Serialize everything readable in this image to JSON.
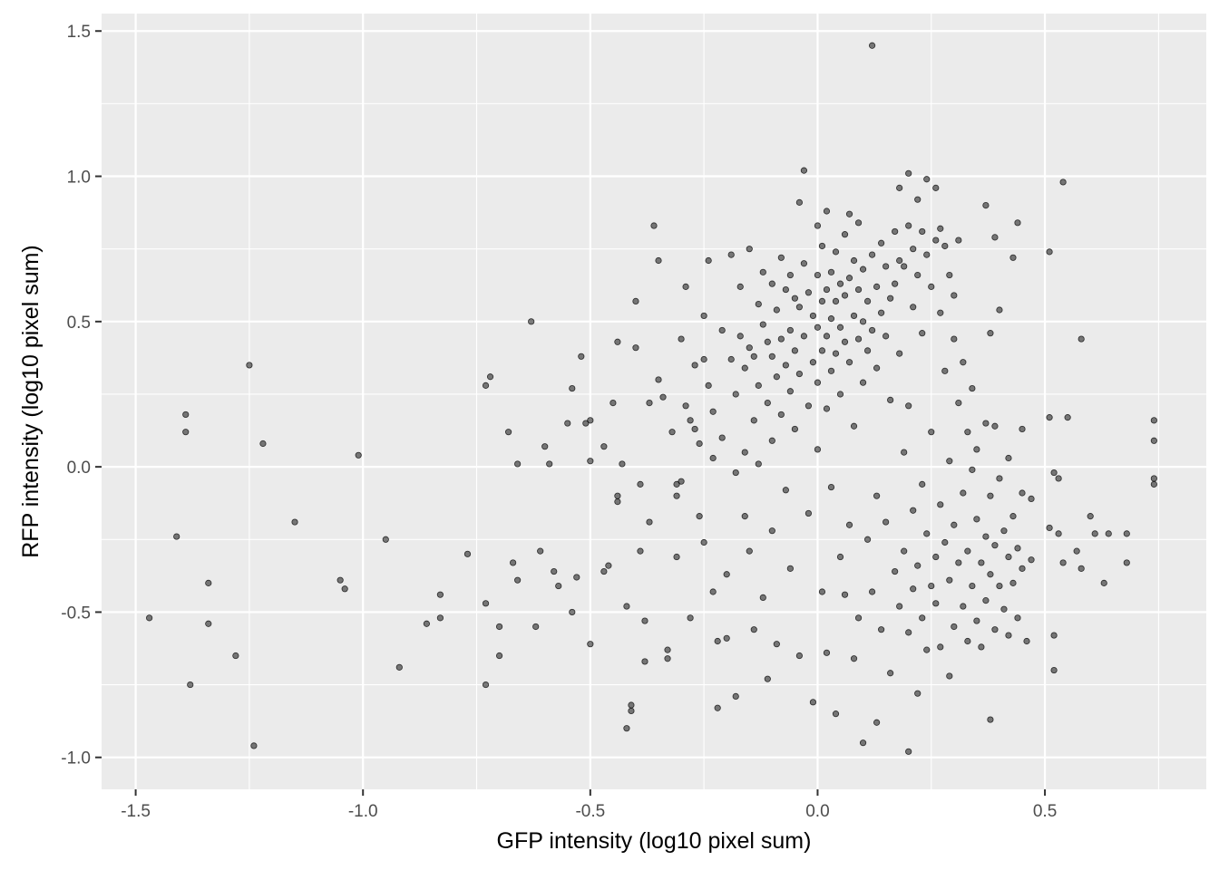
{
  "chart_data": {
    "type": "scatter",
    "title": "",
    "xlabel": "GFP intensity (log10 pixel sum)",
    "ylabel": "RFP intensity (log10 pixel sum)",
    "xlim": [
      -1.575,
      0.855
    ],
    "ylim": [
      -1.11,
      1.56
    ],
    "x_ticks": [
      -1.5,
      -1.0,
      -0.5,
      0.0,
      0.5
    ],
    "x_tick_labels": [
      "-1.5",
      "-1.0",
      "-0.5",
      "0.0",
      "0.5"
    ],
    "y_ticks": [
      -1.0,
      -0.5,
      0.0,
      0.5,
      1.0,
      1.5
    ],
    "y_tick_labels": [
      "-1.0",
      "-0.5",
      "0.0",
      "0.5",
      "1.0",
      "1.5"
    ],
    "grid": true,
    "panel_color": "#ebebeb",
    "point_color": "#000000",
    "point_opacity": 0.5,
    "points": [
      [
        -1.47,
        -0.52
      ],
      [
        -1.41,
        -0.24
      ],
      [
        -1.39,
        0.18
      ],
      [
        -1.39,
        0.12
      ],
      [
        -1.38,
        -0.75
      ],
      [
        -1.34,
        -0.4
      ],
      [
        -1.34,
        -0.54
      ],
      [
        -1.28,
        -0.65
      ],
      [
        -1.25,
        0.35
      ],
      [
        -1.24,
        -0.96
      ],
      [
        -1.22,
        0.08
      ],
      [
        -1.15,
        -0.19
      ],
      [
        -1.05,
        -0.39
      ],
      [
        -1.04,
        -0.42
      ],
      [
        -1.01,
        0.04
      ],
      [
        -0.95,
        -0.25
      ],
      [
        -0.92,
        -0.69
      ],
      [
        -0.86,
        -0.54
      ],
      [
        -0.83,
        -0.44
      ],
      [
        -0.83,
        -0.52
      ],
      [
        -0.77,
        -0.3
      ],
      [
        -0.73,
        0.28
      ],
      [
        -0.72,
        0.31
      ],
      [
        -0.73,
        -0.47
      ],
      [
        -0.73,
        -0.75
      ],
      [
        -0.7,
        -0.55
      ],
      [
        -0.7,
        -0.65
      ],
      [
        -0.68,
        0.12
      ],
      [
        -0.67,
        -0.33
      ],
      [
        -0.66,
        -0.39
      ],
      [
        -0.66,
        0.01
      ],
      [
        -0.63,
        0.5
      ],
      [
        -0.62,
        -0.55
      ],
      [
        -0.61,
        -0.29
      ],
      [
        -0.6,
        0.07
      ],
      [
        -0.59,
        0.01
      ],
      [
        -0.58,
        -0.36
      ],
      [
        -0.57,
        -0.41
      ],
      [
        -0.55,
        0.15
      ],
      [
        -0.54,
        0.27
      ],
      [
        -0.54,
        -0.5
      ],
      [
        -0.53,
        -0.38
      ],
      [
        -0.52,
        0.38
      ],
      [
        -0.51,
        0.15
      ],
      [
        -0.5,
        0.16
      ],
      [
        -0.5,
        0.02
      ],
      [
        -0.5,
        -0.61
      ],
      [
        -0.47,
        0.07
      ],
      [
        -0.47,
        -0.36
      ],
      [
        -0.46,
        -0.34
      ],
      [
        -0.45,
        0.22
      ],
      [
        -0.44,
        0.43
      ],
      [
        -0.44,
        -0.1
      ],
      [
        -0.44,
        -0.12
      ],
      [
        -0.43,
        0.01
      ],
      [
        -0.42,
        -0.48
      ],
      [
        -0.42,
        -0.9
      ],
      [
        -0.41,
        -0.82
      ],
      [
        -0.41,
        -0.84
      ],
      [
        -0.4,
        0.57
      ],
      [
        -0.4,
        0.41
      ],
      [
        -0.39,
        -0.06
      ],
      [
        -0.39,
        -0.29
      ],
      [
        -0.38,
        -0.53
      ],
      [
        -0.38,
        -0.67
      ],
      [
        -0.37,
        0.22
      ],
      [
        -0.37,
        -0.19
      ],
      [
        -0.36,
        0.83
      ],
      [
        -0.35,
        0.71
      ],
      [
        -0.35,
        0.3
      ],
      [
        -0.34,
        0.24
      ],
      [
        -0.33,
        -0.63
      ],
      [
        -0.33,
        -0.66
      ],
      [
        -0.32,
        0.12
      ],
      [
        -0.31,
        -0.06
      ],
      [
        -0.31,
        -0.1
      ],
      [
        -0.31,
        -0.31
      ],
      [
        -0.3,
        0.44
      ],
      [
        -0.3,
        -0.05
      ],
      [
        -0.29,
        0.62
      ],
      [
        -0.29,
        0.21
      ],
      [
        -0.28,
        0.16
      ],
      [
        -0.28,
        -0.52
      ],
      [
        -0.27,
        0.35
      ],
      [
        -0.27,
        0.13
      ],
      [
        -0.26,
        0.08
      ],
      [
        -0.26,
        -0.17
      ],
      [
        -0.25,
        0.52
      ],
      [
        -0.25,
        0.37
      ],
      [
        -0.25,
        -0.26
      ],
      [
        -0.24,
        0.71
      ],
      [
        -0.24,
        0.28
      ],
      [
        -0.23,
        0.19
      ],
      [
        -0.23,
        0.03
      ],
      [
        -0.23,
        -0.43
      ],
      [
        -0.22,
        -0.83
      ],
      [
        -0.22,
        -0.6
      ],
      [
        -0.21,
        0.47
      ],
      [
        -0.21,
        0.1
      ],
      [
        -0.2,
        -0.37
      ],
      [
        -0.2,
        -0.59
      ],
      [
        -0.19,
        0.73
      ],
      [
        -0.19,
        0.37
      ],
      [
        -0.18,
        0.25
      ],
      [
        -0.18,
        -0.02
      ],
      [
        -0.18,
        -0.79
      ],
      [
        -0.17,
        0.62
      ],
      [
        -0.17,
        0.45
      ],
      [
        -0.16,
        0.34
      ],
      [
        -0.16,
        0.05
      ],
      [
        -0.16,
        -0.17
      ],
      [
        -0.15,
        0.75
      ],
      [
        -0.15,
        0.41
      ],
      [
        -0.15,
        -0.29
      ],
      [
        -0.14,
        0.38
      ],
      [
        -0.14,
        0.16
      ],
      [
        -0.14,
        -0.56
      ],
      [
        -0.13,
        0.56
      ],
      [
        -0.13,
        0.28
      ],
      [
        -0.13,
        0.01
      ],
      [
        -0.12,
        0.67
      ],
      [
        -0.12,
        0.49
      ],
      [
        -0.12,
        -0.45
      ],
      [
        -0.11,
        0.43
      ],
      [
        -0.11,
        0.22
      ],
      [
        -0.11,
        -0.73
      ],
      [
        -0.1,
        0.63
      ],
      [
        -0.1,
        0.38
      ],
      [
        -0.1,
        0.09
      ],
      [
        -0.1,
        -0.22
      ],
      [
        -0.09,
        0.54
      ],
      [
        -0.09,
        0.31
      ],
      [
        -0.09,
        -0.61
      ],
      [
        -0.08,
        0.72
      ],
      [
        -0.08,
        0.44
      ],
      [
        -0.08,
        0.18
      ],
      [
        -0.07,
        0.61
      ],
      [
        -0.07,
        0.35
      ],
      [
        -0.07,
        -0.08
      ],
      [
        -0.06,
        0.66
      ],
      [
        -0.06,
        0.47
      ],
      [
        -0.06,
        0.26
      ],
      [
        -0.06,
        -0.35
      ],
      [
        -0.05,
        0.58
      ],
      [
        -0.05,
        0.4
      ],
      [
        -0.05,
        0.13
      ],
      [
        -0.04,
        0.91
      ],
      [
        -0.04,
        0.55
      ],
      [
        -0.04,
        0.32
      ],
      [
        -0.04,
        -0.65
      ],
      [
        -0.03,
        1.02
      ],
      [
        -0.03,
        0.7
      ],
      [
        -0.03,
        0.45
      ],
      [
        -0.02,
        0.6
      ],
      [
        -0.02,
        0.21
      ],
      [
        -0.02,
        -0.16
      ],
      [
        -0.01,
        0.52
      ],
      [
        -0.01,
        0.36
      ],
      [
        -0.01,
        -0.81
      ],
      [
        0.0,
        0.83
      ],
      [
        0.0,
        0.66
      ],
      [
        0.0,
        0.48
      ],
      [
        0.0,
        0.29
      ],
      [
        0.0,
        0.06
      ],
      [
        0.01,
        0.76
      ],
      [
        0.01,
        0.57
      ],
      [
        0.01,
        0.4
      ],
      [
        0.01,
        -0.43
      ],
      [
        0.02,
        0.88
      ],
      [
        0.02,
        0.61
      ],
      [
        0.02,
        0.45
      ],
      [
        0.02,
        0.2
      ],
      [
        0.02,
        -0.64
      ],
      [
        0.03,
        0.67
      ],
      [
        0.03,
        0.51
      ],
      [
        0.03,
        0.33
      ],
      [
        0.03,
        -0.07
      ],
      [
        0.04,
        0.74
      ],
      [
        0.04,
        0.57
      ],
      [
        0.04,
        0.39
      ],
      [
        0.04,
        -0.85
      ],
      [
        0.05,
        0.63
      ],
      [
        0.05,
        0.48
      ],
      [
        0.05,
        0.25
      ],
      [
        0.05,
        -0.31
      ],
      [
        0.06,
        0.8
      ],
      [
        0.06,
        0.59
      ],
      [
        0.06,
        0.43
      ],
      [
        0.06,
        -0.44
      ],
      [
        0.07,
        0.87
      ],
      [
        0.07,
        0.65
      ],
      [
        0.07,
        0.36
      ],
      [
        0.07,
        -0.2
      ],
      [
        0.08,
        0.71
      ],
      [
        0.08,
        0.52
      ],
      [
        0.08,
        0.14
      ],
      [
        0.08,
        -0.66
      ],
      [
        0.09,
        0.84
      ],
      [
        0.09,
        0.61
      ],
      [
        0.09,
        0.44
      ],
      [
        0.09,
        -0.52
      ],
      [
        0.1,
        0.68
      ],
      [
        0.1,
        0.5
      ],
      [
        0.1,
        0.29
      ],
      [
        0.1,
        -0.95
      ],
      [
        0.11,
        0.57
      ],
      [
        0.11,
        0.4
      ],
      [
        0.11,
        -0.25
      ],
      [
        0.12,
        1.45
      ],
      [
        0.12,
        0.73
      ],
      [
        0.12,
        0.47
      ],
      [
        0.12,
        -0.43
      ],
      [
        0.13,
        0.62
      ],
      [
        0.13,
        0.34
      ],
      [
        0.13,
        -0.1
      ],
      [
        0.13,
        -0.88
      ],
      [
        0.14,
        0.77
      ],
      [
        0.14,
        0.53
      ],
      [
        0.14,
        -0.56
      ],
      [
        0.15,
        0.69
      ],
      [
        0.15,
        0.45
      ],
      [
        0.15,
        -0.19
      ],
      [
        0.16,
        0.58
      ],
      [
        0.16,
        0.23
      ],
      [
        0.16,
        -0.71
      ],
      [
        0.17,
        0.81
      ],
      [
        0.17,
        0.63
      ],
      [
        0.17,
        -0.36
      ],
      [
        0.18,
        0.96
      ],
      [
        0.18,
        0.71
      ],
      [
        0.18,
        0.39
      ],
      [
        0.18,
        -0.48
      ],
      [
        0.19,
        0.69
      ],
      [
        0.19,
        0.05
      ],
      [
        0.19,
        -0.29
      ],
      [
        0.2,
        1.01
      ],
      [
        0.2,
        0.83
      ],
      [
        0.2,
        0.21
      ],
      [
        0.2,
        -0.57
      ],
      [
        0.2,
        -0.98
      ],
      [
        0.21,
        0.75
      ],
      [
        0.21,
        0.55
      ],
      [
        0.21,
        -0.15
      ],
      [
        0.21,
        -0.42
      ],
      [
        0.22,
        0.92
      ],
      [
        0.22,
        0.66
      ],
      [
        0.22,
        -0.34
      ],
      [
        0.22,
        -0.78
      ],
      [
        0.23,
        0.81
      ],
      [
        0.23,
        0.46
      ],
      [
        0.23,
        -0.06
      ],
      [
        0.23,
        -0.52
      ],
      [
        0.24,
        0.99
      ],
      [
        0.24,
        0.73
      ],
      [
        0.24,
        -0.23
      ],
      [
        0.24,
        -0.63
      ],
      [
        0.25,
        0.62
      ],
      [
        0.25,
        0.12
      ],
      [
        0.25,
        -0.41
      ],
      [
        0.26,
        0.96
      ],
      [
        0.26,
        0.78
      ],
      [
        0.26,
        -0.31
      ],
      [
        0.26,
        -0.47
      ],
      [
        0.27,
        0.82
      ],
      [
        0.27,
        0.53
      ],
      [
        0.27,
        -0.13
      ],
      [
        0.27,
        -0.62
      ],
      [
        0.28,
        0.76
      ],
      [
        0.28,
        0.33
      ],
      [
        0.28,
        -0.26
      ],
      [
        0.29,
        0.66
      ],
      [
        0.29,
        0.02
      ],
      [
        0.29,
        -0.39
      ],
      [
        0.29,
        -0.72
      ],
      [
        0.3,
        0.59
      ],
      [
        0.3,
        0.44
      ],
      [
        0.3,
        -0.2
      ],
      [
        0.3,
        -0.55
      ],
      [
        0.31,
        0.78
      ],
      [
        0.31,
        0.22
      ],
      [
        0.31,
        -0.33
      ],
      [
        0.32,
        0.36
      ],
      [
        0.32,
        -0.09
      ],
      [
        0.32,
        -0.48
      ],
      [
        0.33,
        0.12
      ],
      [
        0.33,
        -0.29
      ],
      [
        0.33,
        -0.6
      ],
      [
        0.34,
        0.27
      ],
      [
        0.34,
        -0.01
      ],
      [
        0.34,
        -0.41
      ],
      [
        0.35,
        0.06
      ],
      [
        0.35,
        -0.18
      ],
      [
        0.35,
        -0.53
      ],
      [
        0.36,
        -0.33
      ],
      [
        0.36,
        -0.62
      ],
      [
        0.37,
        0.9
      ],
      [
        0.37,
        0.15
      ],
      [
        0.37,
        -0.24
      ],
      [
        0.37,
        -0.46
      ],
      [
        0.38,
        0.46
      ],
      [
        0.38,
        -0.1
      ],
      [
        0.38,
        -0.37
      ],
      [
        0.38,
        -0.87
      ],
      [
        0.39,
        0.79
      ],
      [
        0.39,
        0.14
      ],
      [
        0.39,
        -0.27
      ],
      [
        0.39,
        -0.56
      ],
      [
        0.4,
        0.54
      ],
      [
        0.4,
        -0.04
      ],
      [
        0.4,
        -0.41
      ],
      [
        0.41,
        -0.22
      ],
      [
        0.41,
        -0.49
      ],
      [
        0.42,
        0.03
      ],
      [
        0.42,
        -0.31
      ],
      [
        0.42,
        -0.58
      ],
      [
        0.43,
        0.72
      ],
      [
        0.43,
        -0.17
      ],
      [
        0.43,
        -0.4
      ],
      [
        0.44,
        0.84
      ],
      [
        0.44,
        -0.28
      ],
      [
        0.44,
        -0.52
      ],
      [
        0.45,
        0.13
      ],
      [
        0.45,
        -0.09
      ],
      [
        0.45,
        -0.35
      ],
      [
        0.46,
        -0.6
      ],
      [
        0.47,
        -0.11
      ],
      [
        0.47,
        -0.32
      ],
      [
        0.51,
        0.17
      ],
      [
        0.51,
        0.74
      ],
      [
        0.51,
        -0.21
      ],
      [
        0.52,
        -0.58
      ],
      [
        0.52,
        -0.7
      ],
      [
        0.52,
        -0.02
      ],
      [
        0.53,
        -0.04
      ],
      [
        0.53,
        -0.23
      ],
      [
        0.54,
        0.98
      ],
      [
        0.54,
        -0.33
      ],
      [
        0.55,
        0.17
      ],
      [
        0.57,
        -0.29
      ],
      [
        0.58,
        -0.35
      ],
      [
        0.58,
        0.44
      ],
      [
        0.6,
        -0.17
      ],
      [
        0.61,
        -0.23
      ],
      [
        0.63,
        -0.4
      ],
      [
        0.64,
        -0.23
      ],
      [
        0.68,
        -0.23
      ],
      [
        0.68,
        -0.33
      ],
      [
        0.74,
        0.16
      ],
      [
        0.74,
        0.09
      ],
      [
        0.74,
        -0.04
      ],
      [
        0.74,
        -0.06
      ]
    ]
  }
}
